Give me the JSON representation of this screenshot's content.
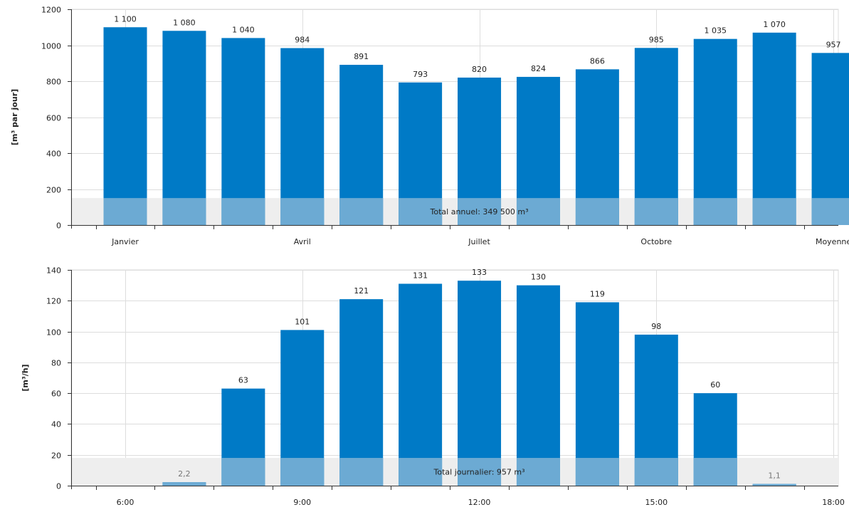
{
  "colors": {
    "bar": "#007ac6",
    "bar_overlay": "#6caad3",
    "band": "#eeeeee",
    "grid": "#dddddd",
    "axis": "#333333",
    "muted_text": "#777777"
  },
  "chart_data": [
    {
      "type": "bar",
      "ylabel": "[m³ par jour]",
      "ylim": [
        0,
        1200
      ],
      "yticks": [
        0,
        200,
        400,
        600,
        800,
        1000,
        1200
      ],
      "grid": true,
      "categories": [
        "Janvier",
        "",
        "",
        "Avril",
        "",
        "",
        "Juillet",
        "",
        "",
        "Octobre",
        "",
        "",
        "Moyenne"
      ],
      "values": [
        1100,
        1080,
        1040,
        984,
        891,
        793,
        820,
        824,
        866,
        985,
        1035,
        1070,
        957
      ],
      "value_labels": [
        "1 100",
        "1 080",
        "1 040",
        "984",
        "891",
        "793",
        "820",
        "824",
        "866",
        "985",
        "1 035",
        "1 070",
        "957"
      ],
      "band_value": 150,
      "band_label": "Total annuel: 349 500 m³"
    },
    {
      "type": "bar",
      "ylabel": "[m³/h]",
      "ylim": [
        0,
        140
      ],
      "yticks": [
        0,
        20,
        40,
        60,
        80,
        100,
        120,
        140
      ],
      "grid": true,
      "categories": [
        "6:00",
        "",
        "",
        "9:00",
        "",
        "",
        "12:00",
        "",
        "",
        "15:00",
        "",
        "",
        "18:00"
      ],
      "values": [
        0,
        2.2,
        63,
        101,
        121,
        131,
        133,
        130,
        119,
        98,
        60,
        1.1,
        0
      ],
      "value_labels": [
        "",
        "2,2",
        "63",
        "101",
        "121",
        "131",
        "133",
        "130",
        "119",
        "98",
        "60",
        "1,1",
        ""
      ],
      "muted_labels": [
        false,
        true,
        false,
        false,
        false,
        false,
        false,
        false,
        false,
        false,
        false,
        true,
        false
      ],
      "band_value": 18,
      "band_label": "Total journalier: 957 m³"
    }
  ]
}
